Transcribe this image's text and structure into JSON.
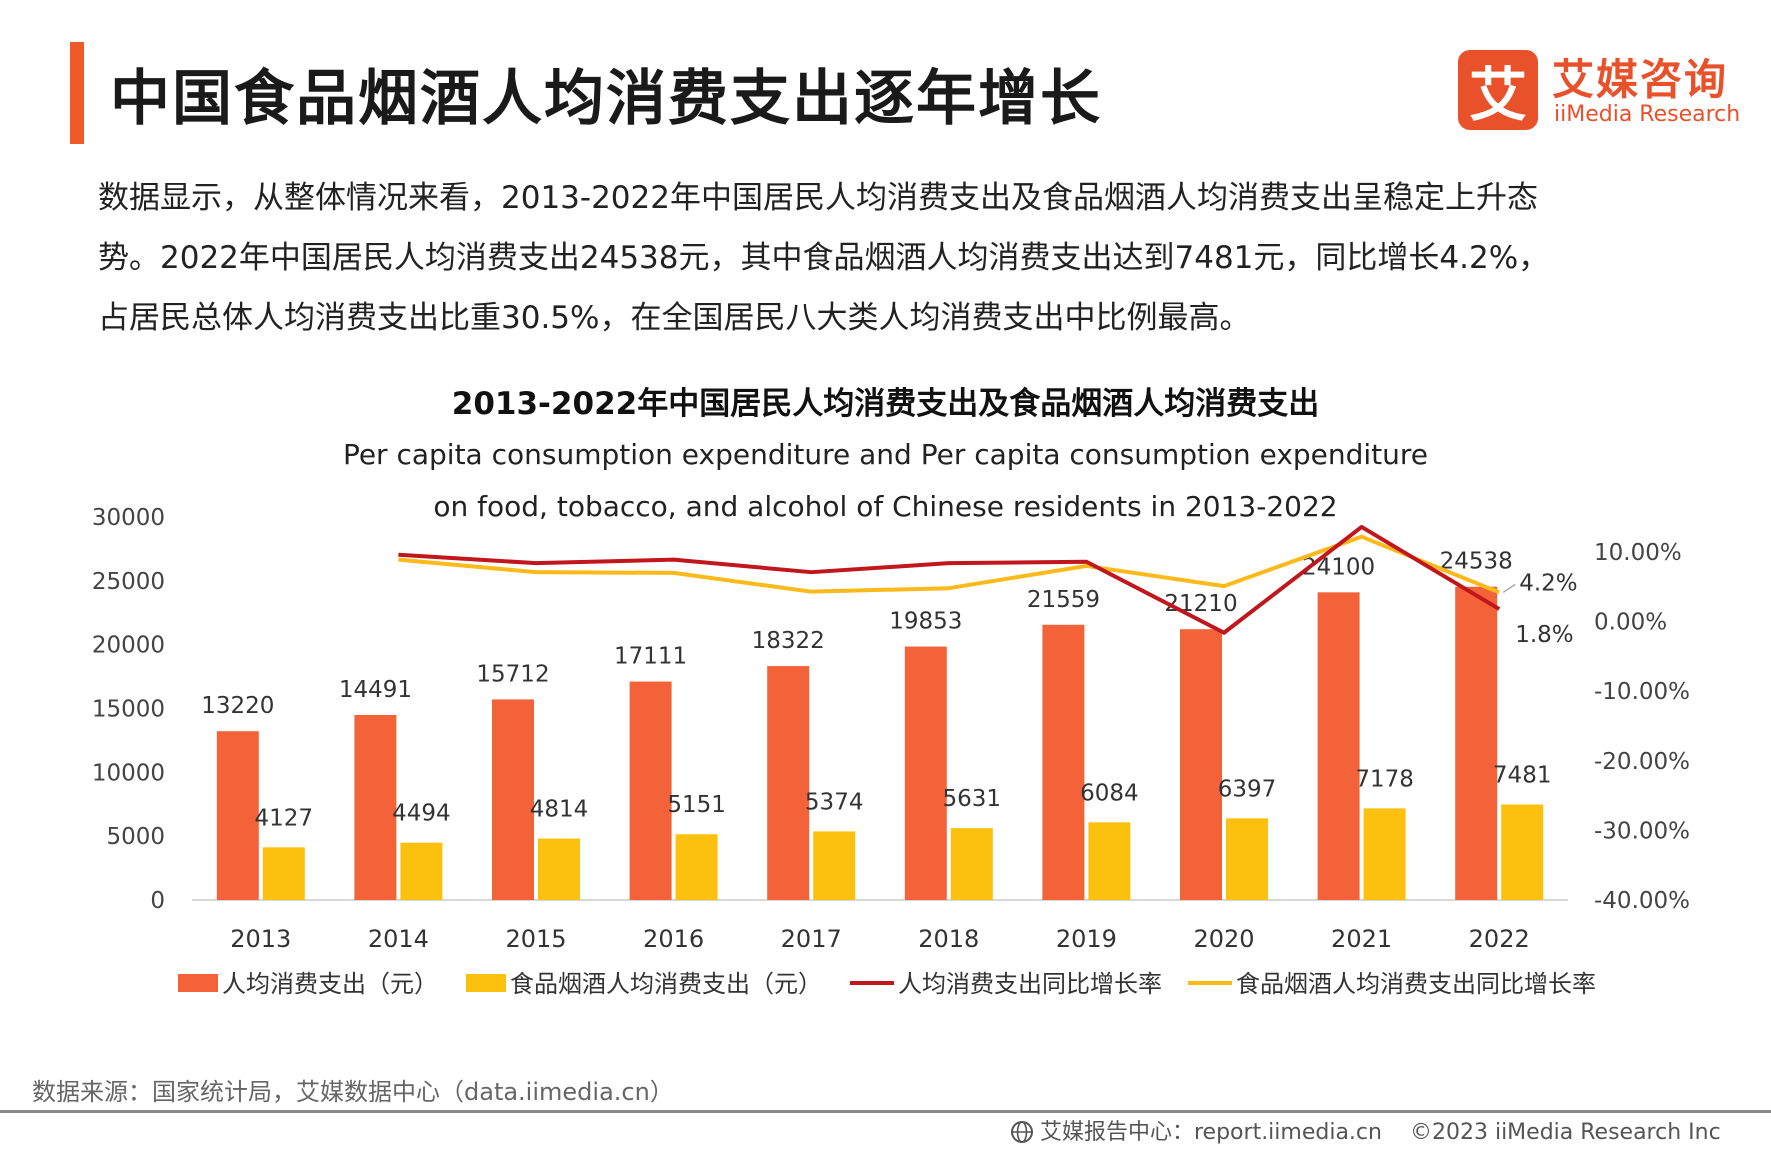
{
  "header": {
    "title": "中国食品烟酒人均消费支出逐年增长",
    "logo_mark": "艾",
    "logo_cn": "艾媒咨询",
    "logo_en": "iiMedia Research",
    "accent_color": "#f05a28"
  },
  "intro": {
    "line1": "数据显示，从整体情况来看，2013-2022年中国居民人均消费支出及食品烟酒人均消费支出呈稳定上升态",
    "line2": "势。2022年中国居民人均消费支出24538元，其中食品烟酒人均消费支出达到7481元，同比增长4.2%，",
    "line3": "占居民总体人均消费支出比重30.5%，在全国居民八大类人均消费支出中比例最高。"
  },
  "chart_data": {
    "type": "bar",
    "title": "2013-2022年中国居民人均消费支出及食品烟酒人均消费支出",
    "subtitle_line1": "Per capita consumption expenditure and Per capita consumption expenditure",
    "subtitle_line2": "on food, tobacco, and alcohol of Chinese residents in 2013-2022",
    "categories": [
      "2013",
      "2014",
      "2015",
      "2016",
      "2017",
      "2018",
      "2019",
      "2020",
      "2021",
      "2022"
    ],
    "series": [
      {
        "name": "人均消费支出（元）",
        "kind": "bar",
        "axis": "left",
        "color": "#f4623a",
        "values": [
          13220,
          14491,
          15712,
          17111,
          18322,
          19853,
          21559,
          21210,
          24100,
          24538
        ]
      },
      {
        "name": "食品烟酒人均消费支出（元）",
        "kind": "bar",
        "axis": "left",
        "color": "#fcc10f",
        "values": [
          4127,
          4494,
          4814,
          5151,
          5374,
          5631,
          6084,
          6397,
          7178,
          7481
        ]
      },
      {
        "name": "人均消费支出同比增长率",
        "kind": "line",
        "axis": "right",
        "color": "#c0161c",
        "values": [
          null,
          9.6,
          8.4,
          8.9,
          7.1,
          8.4,
          8.6,
          -1.6,
          13.6,
          1.8
        ]
      },
      {
        "name": "食品烟酒人均消费支出同比增长率",
        "kind": "line",
        "axis": "right",
        "color": "#fbb91a",
        "values": [
          null,
          8.9,
          7.1,
          7.0,
          4.3,
          4.8,
          8.0,
          5.1,
          12.2,
          4.2
        ]
      }
    ],
    "line_labels": {
      "food_2022": "4.2%",
      "total_2022": "1.8%"
    },
    "y_left": {
      "ticks": [
        "0",
        "5000",
        "10000",
        "15000",
        "20000",
        "25000",
        "30000"
      ],
      "ylim": [
        0,
        30000
      ]
    },
    "y_right": {
      "ticks": [
        "-40.00%",
        "-30.00%",
        "-20.00%",
        "-10.00%",
        "0.00%",
        "10.00%"
      ],
      "ylim": [
        -40,
        10
      ]
    },
    "grid": false,
    "legend_position": "bottom"
  },
  "source": "数据来源：国家统计局，艾媒数据中心（data.iimedia.cn）",
  "footer": {
    "globe_icon": "globe-icon",
    "report": "艾媒报告中心：report.iimedia.cn",
    "copyright": "©2023  iiMedia Research  Inc"
  }
}
